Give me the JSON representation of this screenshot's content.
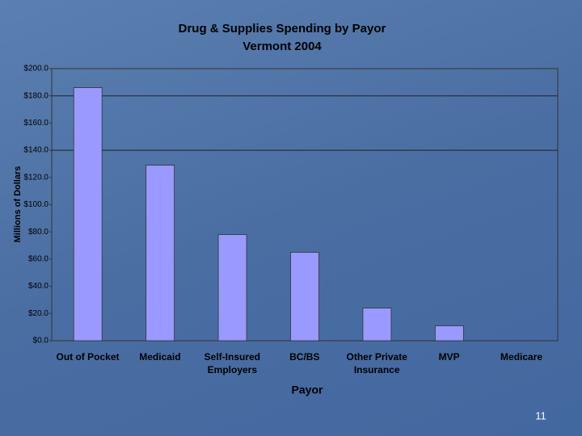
{
  "chart_data": {
    "type": "bar",
    "title": "Drug & Supplies Spending by Payor",
    "subtitle": "Vermont 2004",
    "x_label": "Payor",
    "y_label": "Millions of Dollars",
    "categories": [
      "Out of Pocket",
      "Medicaid",
      "Self-Insured Employers",
      "BC/BS",
      "Other Private Insurance",
      "MVP",
      "Medicare"
    ],
    "values": [
      186,
      129,
      78,
      65,
      24,
      11,
      0
    ],
    "color": "#9999ff",
    "ylim": [
      0,
      200
    ],
    "yticks": [
      {
        "value": 0,
        "label": "$0.0"
      },
      {
        "value": 20,
        "label": "$20.0"
      },
      {
        "value": 40,
        "label": "$40.0"
      },
      {
        "value": 60,
        "label": "$60.0"
      },
      {
        "value": 80,
        "label": "$80.0"
      },
      {
        "value": 100,
        "label": "$100.0"
      },
      {
        "value": 120,
        "label": "$120.0"
      },
      {
        "value": 140,
        "label": "$140.0"
      },
      {
        "value": 160,
        "label": "$160.0"
      },
      {
        "value": 180,
        "label": "$180.0"
      },
      {
        "value": 200,
        "label": "$200.0"
      }
    ],
    "gridlines": [
      140,
      180
    ]
  },
  "slide_number": "11"
}
